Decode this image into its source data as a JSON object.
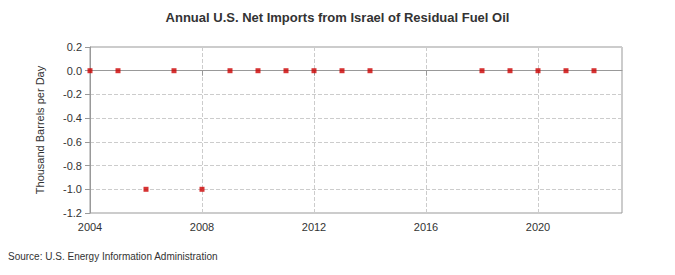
{
  "chart_data": {
    "type": "scatter",
    "title": "Annual U.S. Net Imports from Israel of Residual Fuel Oil",
    "y_label": "Thousand Barrels per Day",
    "annotation": "Source: U.S. Energy Information Administration",
    "x": [
      2004,
      2005,
      2006,
      2007,
      2008,
      2009,
      2010,
      2011,
      2012,
      2013,
      2014,
      2015,
      2016,
      2017,
      2018,
      2019,
      2020,
      2021,
      2022
    ],
    "values": [
      0,
      0,
      -1,
      0,
      -1,
      0,
      0,
      0,
      0,
      0,
      0,
      null,
      null,
      null,
      0,
      0,
      0,
      0,
      0
    ],
    "color": "#cc0000",
    "marker": "square",
    "xlim": [
      2004,
      2023
    ],
    "xticks": [
      2004,
      2008,
      2012,
      2016,
      2020
    ],
    "ylim": [
      -1.2,
      0.2
    ],
    "yticks": [
      {
        "value": -1.2,
        "label": "-1.2"
      },
      {
        "value": -1.0,
        "label": "-1.0"
      },
      -0.8,
      -0.6,
      -0.4,
      -0.2,
      {
        "value": 0,
        "label": "0.0"
      },
      0.2
    ],
    "grid": true
  }
}
